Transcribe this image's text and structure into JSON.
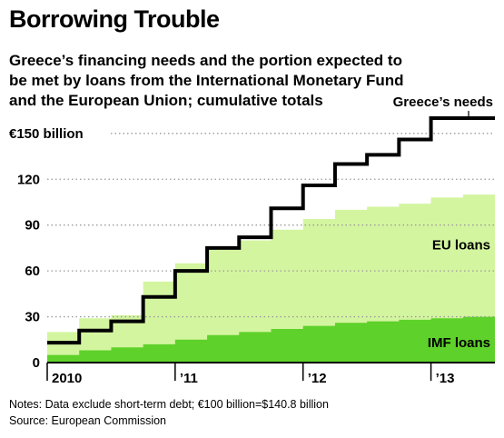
{
  "header": {
    "title": "Borrowing Trouble",
    "subtitle": "Greece’s financing needs and the portion expected to be met by loans from the International Monetary Fund and the European Union; cumulative totals"
  },
  "footer": {
    "notes": "Notes: Data exclude short-term debt; €100 billion=$140.8 billion",
    "source": "Source: European Commission"
  },
  "colors": {
    "eu_loans": "#d4f5a0",
    "imf_loans": "#5ed12a",
    "needs_line": "#000000",
    "gridline": "#9a9a9a",
    "axis": "#000000"
  },
  "chart_data": {
    "type": "area",
    "title": "Borrowing Trouble",
    "unit": "€ billion",
    "ylim": [
      0,
      160
    ],
    "xlim": [
      2010.0,
      2013.5
    ],
    "grid": true,
    "y_ticks": [
      {
        "value": 0,
        "label": "0"
      },
      {
        "value": 30,
        "label": "30"
      },
      {
        "value": 60,
        "label": "60"
      },
      {
        "value": 90,
        "label": "90"
      },
      {
        "value": 120,
        "label": "120"
      },
      {
        "value": 150,
        "label": "€150  billion"
      }
    ],
    "x_ticks": [
      {
        "value": 2010.0,
        "label": "2010"
      },
      {
        "value": 2011.0,
        "label": "’11"
      },
      {
        "value": 2012.0,
        "label": "’12"
      },
      {
        "value": 2013.0,
        "label": "’13"
      }
    ],
    "periods": [
      2010.0,
      2010.25,
      2010.5,
      2010.75,
      2011.0,
      2011.25,
      2011.5,
      2011.75,
      2012.0,
      2012.25,
      2012.5,
      2012.75,
      2013.0,
      2013.25
    ],
    "period_end": 2013.5,
    "series": [
      {
        "name": "IMF loans",
        "values": [
          5,
          8,
          10,
          12,
          15,
          18,
          20,
          22,
          24,
          26,
          27,
          28,
          29,
          30
        ]
      },
      {
        "name": "EU loans",
        "values": [
          20,
          29,
          31,
          53,
          65,
          74,
          80,
          87,
          94,
          100,
          102,
          104,
          108,
          110
        ]
      },
      {
        "name": "Greece’s needs",
        "values": [
          13,
          21,
          27,
          43,
          60,
          75,
          82,
          101,
          116,
          130,
          136,
          146,
          160,
          160
        ]
      }
    ]
  }
}
